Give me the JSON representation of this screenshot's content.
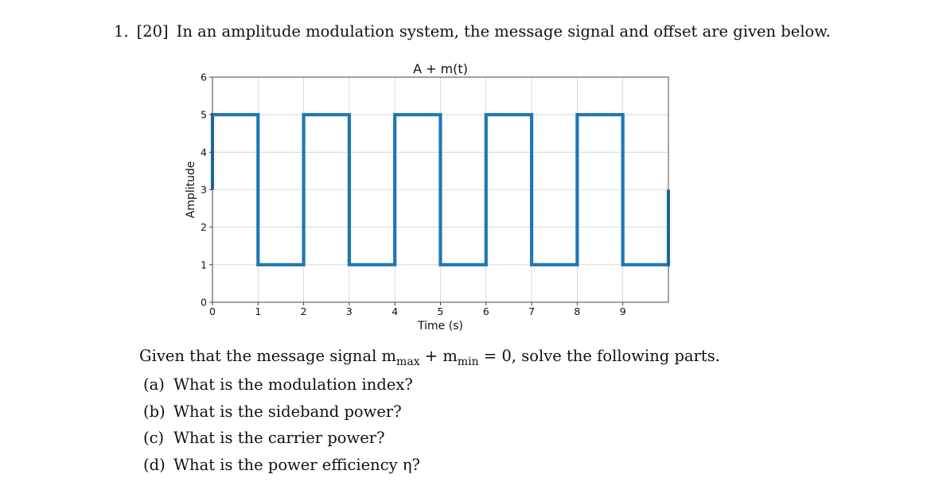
{
  "problem": {
    "number": "1.",
    "points": "[20]",
    "statement": "In an amplitude modulation system, the message signal and offset are given below."
  },
  "given": {
    "prefix": "Given that the message signal m",
    "sub_max": "max",
    "plus": " + m",
    "sub_min": "min",
    "suffix": " = 0, solve the following parts."
  },
  "parts": [
    {
      "label": "(a)",
      "text": "What is the modulation index?"
    },
    {
      "label": "(b)",
      "text": "What is the sideband power?"
    },
    {
      "label": "(c)",
      "text": "What is the carrier power?"
    },
    {
      "label": "(d)",
      "text": "What is the power efficiency η?"
    }
  ],
  "chart_data": {
    "type": "line",
    "title": "A + m(t)",
    "xlabel": "Time (s)",
    "ylabel": "Amplitude",
    "xlim": [
      0,
      10
    ],
    "ylim": [
      0,
      6
    ],
    "xticks": [
      0,
      1,
      2,
      3,
      4,
      5,
      6,
      7,
      8,
      9
    ],
    "yticks": [
      0,
      1,
      2,
      3,
      4,
      5,
      6
    ],
    "grid": true,
    "color": "#1f77b4",
    "series": [
      {
        "x": [
          0,
          0,
          1,
          1,
          2,
          2,
          3,
          3,
          4,
          4,
          5,
          5,
          6,
          6,
          7,
          7,
          8,
          8,
          9,
          9,
          10,
          10
        ],
        "y": [
          3,
          5,
          5,
          1,
          1,
          5,
          5,
          1,
          1,
          5,
          5,
          1,
          1,
          5,
          5,
          1,
          1,
          5,
          5,
          1,
          1,
          3
        ]
      }
    ]
  }
}
